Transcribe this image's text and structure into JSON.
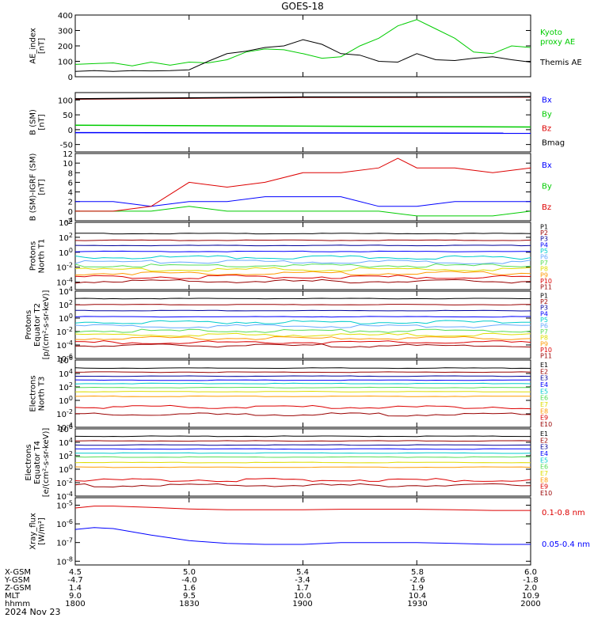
{
  "title": "GOES-18",
  "colors": {
    "black": "#000000",
    "blue": "#0000ff",
    "green": "#00cc00",
    "red": "#dd0000",
    "darkred": "#990000",
    "navy": "#000099",
    "cyan": "#00cccc",
    "lightblue": "#66aaff",
    "ltgreen": "#55dd55",
    "yellow": "#dddd00",
    "orange": "#ff9900"
  },
  "time_axis": {
    "ticks": [
      "1800",
      "1830",
      "1900",
      "1930",
      "2000"
    ],
    "rows": [
      {
        "label": "X-GSM",
        "values": [
          "4.5",
          "5.0",
          "5.4",
          "5.8",
          "6.0"
        ]
      },
      {
        "label": "Y-GSM",
        "values": [
          "-4.7",
          "-4.0",
          "-3.4",
          "-2.6",
          "-1.8"
        ]
      },
      {
        "label": "Z-GSM",
        "values": [
          "1.4",
          "1.6",
          "1.7",
          "1.9",
          "2.0"
        ]
      },
      {
        "label": "MLT",
        "values": [
          "9.0",
          "9.5",
          "10.0",
          "10.4",
          "10.9"
        ]
      },
      {
        "label": "hhmm",
        "values": [
          "1800",
          "1830",
          "1900",
          "1930",
          "2000"
        ]
      }
    ],
    "date": "2024 Nov 23"
  },
  "chart_data": [
    {
      "type": "line",
      "ylabel": "AE_index\n[nT]",
      "ylim": [
        0,
        400
      ],
      "yticks": [
        "0",
        "100",
        "200",
        "300",
        "400"
      ],
      "scale": "linear",
      "legend": [
        {
          "text": "Kyoto",
          "color": "#00cc00"
        },
        {
          "text": "proxy AE",
          "color": "#00cc00"
        },
        {
          "text": "Themis AE",
          "color": "#000000"
        }
      ],
      "series": [
        {
          "name": "Kyoto proxy AE",
          "color": "#00cc00",
          "x": [
            0,
            5,
            10,
            15,
            20,
            25,
            30,
            35,
            40,
            45,
            50,
            55,
            60,
            65,
            70,
            75,
            80,
            85,
            90,
            95,
            100,
            105,
            110,
            115,
            120
          ],
          "y": [
            80,
            85,
            90,
            70,
            95,
            75,
            95,
            90,
            110,
            160,
            180,
            175,
            150,
            120,
            130,
            200,
            250,
            330,
            370,
            310,
            250,
            160,
            150,
            200,
            190
          ]
        },
        {
          "name": "Themis AE",
          "color": "#000000",
          "x": [
            0,
            5,
            10,
            15,
            20,
            25,
            30,
            35,
            40,
            45,
            50,
            55,
            60,
            65,
            70,
            75,
            80,
            85,
            90,
            95,
            100,
            105,
            110,
            115,
            120
          ],
          "y": [
            35,
            40,
            35,
            40,
            38,
            40,
            45,
            100,
            150,
            165,
            190,
            200,
            240,
            210,
            150,
            140,
            100,
            95,
            150,
            110,
            105,
            120,
            130,
            110,
            95
          ]
        }
      ]
    },
    {
      "type": "line",
      "ylabel": "B (SM)\n[nT]",
      "ylim": [
        -75,
        125
      ],
      "yticks": [
        "-50",
        "0",
        "50",
        "100"
      ],
      "scale": "linear",
      "legend": [
        {
          "text": "Bx",
          "color": "#0000ff"
        },
        {
          "text": "By",
          "color": "#00cc00"
        },
        {
          "text": "Bz",
          "color": "#dd0000"
        },
        {
          "text": "Bmag",
          "color": "#000000"
        }
      ],
      "series": [
        {
          "name": "Bx",
          "color": "#0000ff",
          "x": [
            0,
            120
          ],
          "y": [
            -10,
            -12
          ]
        },
        {
          "name": "By",
          "color": "#00cc00",
          "x": [
            0,
            120
          ],
          "y": [
            15,
            9
          ]
        },
        {
          "name": "Bz",
          "color": "#dd0000",
          "x": [
            0,
            30,
            60,
            120
          ],
          "y": [
            103,
            106,
            109,
            110
          ]
        },
        {
          "name": "Bmag",
          "color": "#000000",
          "x": [
            0,
            30,
            60,
            120
          ],
          "y": [
            104,
            107,
            110,
            111
          ]
        }
      ]
    },
    {
      "type": "line",
      "ylabel": "B (SM)-IGRF (SM)\n[nT]",
      "ylim": [
        -2,
        12
      ],
      "yticks": [
        "-2",
        "0",
        "2",
        "4",
        "6",
        "8",
        "10",
        "12"
      ],
      "scale": "linear",
      "legend": [
        {
          "text": "Bx",
          "color": "#0000ff"
        },
        {
          "text": "By",
          "color": "#00cc00"
        },
        {
          "text": "Bz",
          "color": "#dd0000"
        }
      ],
      "series": [
        {
          "name": "Bx",
          "color": "#0000ff",
          "x": [
            0,
            10,
            20,
            30,
            40,
            50,
            60,
            70,
            80,
            90,
            100,
            110,
            120
          ],
          "y": [
            2,
            2,
            1,
            2,
            2,
            3,
            3,
            3,
            1,
            1,
            2,
            2,
            2
          ]
        },
        {
          "name": "By",
          "color": "#00cc00",
          "x": [
            0,
            10,
            20,
            30,
            40,
            50,
            60,
            70,
            80,
            90,
            100,
            110,
            120
          ],
          "y": [
            0,
            0,
            0,
            1,
            0,
            0,
            0,
            0,
            0,
            -1,
            -1,
            -1,
            0
          ]
        },
        {
          "name": "Bz",
          "color": "#dd0000",
          "x": [
            0,
            10,
            20,
            30,
            40,
            50,
            60,
            70,
            80,
            85,
            90,
            100,
            110,
            120
          ],
          "y": [
            0,
            0,
            1,
            6,
            5,
            6,
            8,
            8,
            9,
            11,
            9,
            9,
            8,
            9
          ]
        }
      ]
    },
    {
      "type": "line",
      "ylabel": "Protons\nNorth T1",
      "ylim": [
        -5,
        4
      ],
      "yticks": [
        "10^-4",
        "10^-2",
        "10^0",
        "10^2",
        "10^4"
      ],
      "scale": "log",
      "legend": [
        {
          "text": "P1",
          "color": "#000000"
        },
        {
          "text": "P2",
          "color": "#990000"
        },
        {
          "text": "P3",
          "color": "#000099"
        },
        {
          "text": "P4",
          "color": "#0000ff"
        },
        {
          "text": "P5",
          "color": "#00cccc"
        },
        {
          "text": "P6",
          "color": "#66aaff"
        },
        {
          "text": "P7",
          "color": "#55dd55"
        },
        {
          "text": "P8",
          "color": "#dddd00"
        },
        {
          "text": "P9",
          "color": "#ff9900"
        },
        {
          "text": "P10",
          "color": "#dd0000"
        },
        {
          "text": "P11",
          "color": "#990000"
        }
      ],
      "series": [
        {
          "name": "P1",
          "color": "#000000",
          "level": 2.5
        },
        {
          "name": "P2",
          "color": "#990000",
          "level": 1.6
        },
        {
          "name": "P3",
          "color": "#000099",
          "level": 0.9
        },
        {
          "name": "P4",
          "color": "#0000ff",
          "level": 0.1
        },
        {
          "name": "P5",
          "color": "#00cccc",
          "level": -0.7
        },
        {
          "name": "P6",
          "color": "#66aaff",
          "level": -1.3
        },
        {
          "name": "P7",
          "color": "#55dd55",
          "level": -1.8
        },
        {
          "name": "P8",
          "color": "#dddd00",
          "level": -2.3
        },
        {
          "name": "P9",
          "color": "#ff9900",
          "level": -2.8
        },
        {
          "name": "P10",
          "color": "#dd0000",
          "level": -3.3
        },
        {
          "name": "P11",
          "color": "#990000",
          "level": -3.9
        }
      ]
    },
    {
      "type": "line",
      "ylabel": "Protons\nEquator T2\n[p/(cm²-s-sr-keV)]",
      "ylim": [
        -6,
        4
      ],
      "yticks": [
        "10^-6",
        "10^-4",
        "10^-2",
        "10^0",
        "10^2",
        "10^4"
      ],
      "scale": "log",
      "legend": [
        {
          "text": "P1",
          "color": "#000000"
        },
        {
          "text": "P2",
          "color": "#990000"
        },
        {
          "text": "P3",
          "color": "#000099"
        },
        {
          "text": "P4",
          "color": "#0000ff"
        },
        {
          "text": "P5",
          "color": "#00cccc"
        },
        {
          "text": "P6",
          "color": "#66aaff"
        },
        {
          "text": "P7",
          "color": "#55dd55"
        },
        {
          "text": "P8",
          "color": "#dddd00"
        },
        {
          "text": "P9",
          "color": "#ff9900"
        },
        {
          "text": "P10",
          "color": "#dd0000"
        },
        {
          "text": "P11",
          "color": "#990000"
        }
      ],
      "series": [
        {
          "name": "P1",
          "color": "#000000",
          "level": 2.9
        },
        {
          "name": "P2",
          "color": "#990000",
          "level": 2.0
        },
        {
          "name": "P3",
          "color": "#000099",
          "level": 1.1
        },
        {
          "name": "P4",
          "color": "#0000ff",
          "level": 0.2
        },
        {
          "name": "P5",
          "color": "#00cccc",
          "level": -0.6
        },
        {
          "name": "P6",
          "color": "#66aaff",
          "level": -1.2
        },
        {
          "name": "P7",
          "color": "#55dd55",
          "level": -1.9
        },
        {
          "name": "P8",
          "color": "#dddd00",
          "level": -2.5
        },
        {
          "name": "P9",
          "color": "#ff9900",
          "level": -3.0
        },
        {
          "name": "P10",
          "color": "#dd0000",
          "level": -3.6
        },
        {
          "name": "P11",
          "color": "#990000",
          "level": -4.1
        }
      ]
    },
    {
      "type": "line",
      "ylabel": "Electrons\nNorth T3",
      "ylim": [
        -4,
        6
      ],
      "yticks": [
        "10^-4",
        "10^-2",
        "10^0",
        "10^2",
        "10^4",
        "10^6"
      ],
      "scale": "log",
      "legend": [
        {
          "text": "E1",
          "color": "#000000"
        },
        {
          "text": "E2",
          "color": "#990000"
        },
        {
          "text": "E3",
          "color": "#000099"
        },
        {
          "text": "E4",
          "color": "#0000ff"
        },
        {
          "text": "E5",
          "color": "#00cccc"
        },
        {
          "text": "E6",
          "color": "#55dd55"
        },
        {
          "text": "E7",
          "color": "#dddd00"
        },
        {
          "text": "E8",
          "color": "#ff9900"
        },
        {
          "text": "E9",
          "color": "#dd0000"
        },
        {
          "text": "E10",
          "color": "#990000"
        }
      ],
      "series": [
        {
          "name": "E1",
          "color": "#000000",
          "level": 4.8
        },
        {
          "name": "E2",
          "color": "#990000",
          "level": 4.2
        },
        {
          "name": "E3",
          "color": "#000099",
          "level": 3.6
        },
        {
          "name": "E4",
          "color": "#0000ff",
          "level": 3.0
        },
        {
          "name": "E5",
          "color": "#00cccc",
          "level": 2.5
        },
        {
          "name": "E6",
          "color": "#55dd55",
          "level": 1.9
        },
        {
          "name": "E7",
          "color": "#dddd00",
          "level": 1.3
        },
        {
          "name": "E8",
          "color": "#ff9900",
          "level": 0.6
        },
        {
          "name": "E9",
          "color": "#dd0000",
          "level": -1.0
        },
        {
          "name": "E10",
          "color": "#990000",
          "level": -2.1
        }
      ]
    },
    {
      "type": "line",
      "ylabel": "Electrons\nEquator T4\n[e/(cm²-s-sr-keV)]",
      "ylim": [
        -4,
        6
      ],
      "yticks": [
        "10^-4",
        "10^-2",
        "10^0",
        "10^2",
        "10^4",
        "10^6"
      ],
      "scale": "log",
      "legend": [
        {
          "text": "E1",
          "color": "#000000"
        },
        {
          "text": "E2",
          "color": "#990000"
        },
        {
          "text": "E3",
          "color": "#000099"
        },
        {
          "text": "E4",
          "color": "#0000ff"
        },
        {
          "text": "E5",
          "color": "#00cccc"
        },
        {
          "text": "E6",
          "color": "#55dd55"
        },
        {
          "text": "E7",
          "color": "#dddd00"
        },
        {
          "text": "E8",
          "color": "#ff9900"
        },
        {
          "text": "E9",
          "color": "#dd0000"
        },
        {
          "text": "E10",
          "color": "#990000"
        }
      ],
      "series": [
        {
          "name": "E1",
          "color": "#000000",
          "level": 4.9
        },
        {
          "name": "E2",
          "color": "#990000",
          "level": 4.2
        },
        {
          "name": "E3",
          "color": "#000099",
          "level": 3.6
        },
        {
          "name": "E4",
          "color": "#0000ff",
          "level": 3.0
        },
        {
          "name": "E5",
          "color": "#00cccc",
          "level": 2.4
        },
        {
          "name": "E6",
          "color": "#55dd55",
          "level": 1.8
        },
        {
          "name": "E7",
          "color": "#dddd00",
          "level": 1.0
        },
        {
          "name": "E8",
          "color": "#ff9900",
          "level": 0.3
        },
        {
          "name": "E9",
          "color": "#dd0000",
          "level": -1.6
        },
        {
          "name": "E10",
          "color": "#990000",
          "level": -2.4
        }
      ]
    },
    {
      "type": "line",
      "ylabel": "Xray_flux\n[W/m²]",
      "ylim": [
        -8.2,
        -4.6
      ],
      "yticks": [
        "10^-8",
        "10^-7",
        "10^-6",
        "10^-5"
      ],
      "scale": "log",
      "legend": [
        {
          "text": "0.1-0.8 nm",
          "color": "#dd0000"
        },
        {
          "text": "0.05-0.4 nm",
          "color": "#0000ff"
        }
      ],
      "series": [
        {
          "name": "0.1-0.8 nm",
          "color": "#dd0000",
          "x": [
            0,
            5,
            10,
            20,
            30,
            40,
            50,
            60,
            70,
            80,
            90,
            100,
            110,
            120
          ],
          "y": [
            -5.15,
            -5.05,
            -5.05,
            -5.12,
            -5.2,
            -5.25,
            -5.25,
            -5.25,
            -5.22,
            -5.22,
            -5.22,
            -5.25,
            -5.28,
            -5.28
          ]
        },
        {
          "name": "0.05-0.4 nm",
          "color": "#0000ff",
          "x": [
            0,
            5,
            10,
            20,
            30,
            40,
            50,
            60,
            70,
            80,
            90,
            100,
            110,
            120
          ],
          "y": [
            -6.3,
            -6.2,
            -6.25,
            -6.6,
            -6.9,
            -7.05,
            -7.1,
            -7.1,
            -7.0,
            -7.0,
            -7.0,
            -7.05,
            -7.1,
            -7.1
          ]
        }
      ]
    }
  ]
}
